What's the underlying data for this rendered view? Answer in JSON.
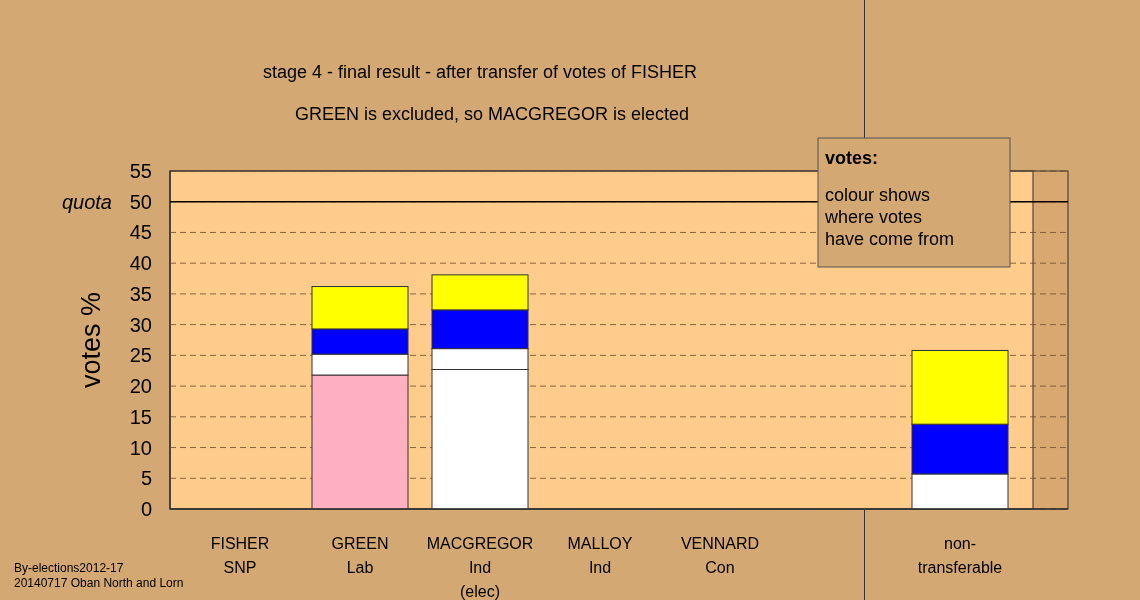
{
  "chart_data": {
    "type": "bar",
    "title": "stage 4 - final result - after transfer of votes of FISHER",
    "subtitle": "GREEN is excluded, so MACGREGOR is elected",
    "ylabel": "votes %",
    "categories": [
      "FISHER\nSNP",
      "GREEN\nLab",
      "MACGREGOR\nInd\n(elec)",
      "MALLOY\nInd",
      "VENNARD\nCon",
      null,
      "non-\ntransferable"
    ],
    "stacked": true,
    "series": [
      {
        "color": "#ffb0c0",
        "values": [
          0,
          21.8,
          0,
          0,
          0,
          null,
          0
        ]
      },
      {
        "color": "#ffffff",
        "values": [
          0,
          0,
          22.7,
          0,
          0,
          null,
          0
        ]
      },
      {
        "color": "#ffffff",
        "values": [
          0,
          3.4,
          3.4,
          0,
          0,
          null,
          5.7
        ]
      },
      {
        "color": "#0000ff",
        "values": [
          0,
          4.1,
          6.3,
          0,
          0,
          null,
          8.1
        ]
      },
      {
        "color": "#ffff00",
        "values": [
          0,
          6.9,
          5.7,
          0,
          0,
          null,
          12.0
        ]
      }
    ],
    "ylim": [
      0,
      55
    ],
    "yticks": [
      0,
      5,
      10,
      15,
      20,
      25,
      30,
      35,
      40,
      45,
      50,
      55
    ],
    "grid": "y",
    "ref_lines": [
      {
        "axis": "y",
        "value": 50,
        "label": "quota",
        "color": "#000000",
        "line_style": "solid"
      }
    ],
    "annotations": [
      "votes:",
      "colour shows\nwhere votes\nhave come from",
      "By-elections2012-17",
      "20140717 Oban North and Lorn"
    ]
  }
}
